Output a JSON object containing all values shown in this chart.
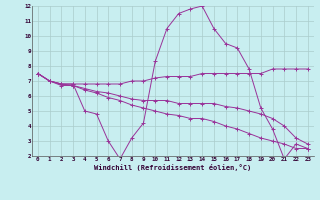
{
  "xlabel": "Windchill (Refroidissement éolien,°C)",
  "bg_color": "#c8eef0",
  "line_color": "#993399",
  "grid_color": "#aacccc",
  "xlim": [
    -0.5,
    23.5
  ],
  "ylim": [
    2,
    12
  ],
  "xticks": [
    0,
    1,
    2,
    3,
    4,
    5,
    6,
    7,
    8,
    9,
    10,
    11,
    12,
    13,
    14,
    15,
    16,
    17,
    18,
    19,
    20,
    21,
    22,
    23
  ],
  "yticks": [
    2,
    3,
    4,
    5,
    6,
    7,
    8,
    9,
    10,
    11,
    12
  ],
  "lines": [
    {
      "x": [
        0,
        1,
        2,
        3,
        4,
        5,
        6,
        7,
        8,
        9,
        10,
        11,
        12,
        13,
        14,
        15,
        16,
        17,
        18,
        19,
        20,
        21,
        22,
        23
      ],
      "y": [
        7.5,
        7.0,
        6.8,
        6.8,
        5.0,
        4.8,
        3.0,
        1.8,
        3.2,
        4.2,
        8.3,
        10.5,
        11.5,
        11.8,
        12.0,
        10.5,
        9.5,
        9.2,
        7.8,
        5.2,
        3.8,
        1.8,
        2.8,
        2.5
      ]
    },
    {
      "x": [
        0,
        1,
        2,
        3,
        4,
        5,
        6,
        7,
        8,
        9,
        10,
        11,
        12,
        13,
        14,
        15,
        16,
        17,
        18,
        19,
        20,
        21,
        22,
        23
      ],
      "y": [
        7.5,
        7.0,
        6.8,
        6.8,
        6.8,
        6.8,
        6.8,
        6.8,
        7.0,
        7.0,
        7.2,
        7.3,
        7.3,
        7.3,
        7.5,
        7.5,
        7.5,
        7.5,
        7.5,
        7.5,
        7.8,
        7.8,
        7.8,
        7.8
      ]
    },
    {
      "x": [
        0,
        1,
        2,
        3,
        4,
        5,
        6,
        7,
        8,
        9,
        10,
        11,
        12,
        13,
        14,
        15,
        16,
        17,
        18,
        19,
        20,
        21,
        22,
        23
      ],
      "y": [
        7.5,
        7.0,
        6.8,
        6.7,
        6.5,
        6.3,
        6.2,
        6.0,
        5.8,
        5.7,
        5.7,
        5.7,
        5.5,
        5.5,
        5.5,
        5.5,
        5.3,
        5.2,
        5.0,
        4.8,
        4.5,
        4.0,
        3.2,
        2.8
      ]
    },
    {
      "x": [
        0,
        1,
        2,
        3,
        4,
        5,
        6,
        7,
        8,
        9,
        10,
        11,
        12,
        13,
        14,
        15,
        16,
        17,
        18,
        19,
        20,
        21,
        22,
        23
      ],
      "y": [
        7.5,
        7.0,
        6.7,
        6.7,
        6.4,
        6.2,
        5.9,
        5.7,
        5.4,
        5.2,
        5.0,
        4.8,
        4.7,
        4.5,
        4.5,
        4.3,
        4.0,
        3.8,
        3.5,
        3.2,
        3.0,
        2.8,
        2.5,
        2.5
      ]
    }
  ]
}
